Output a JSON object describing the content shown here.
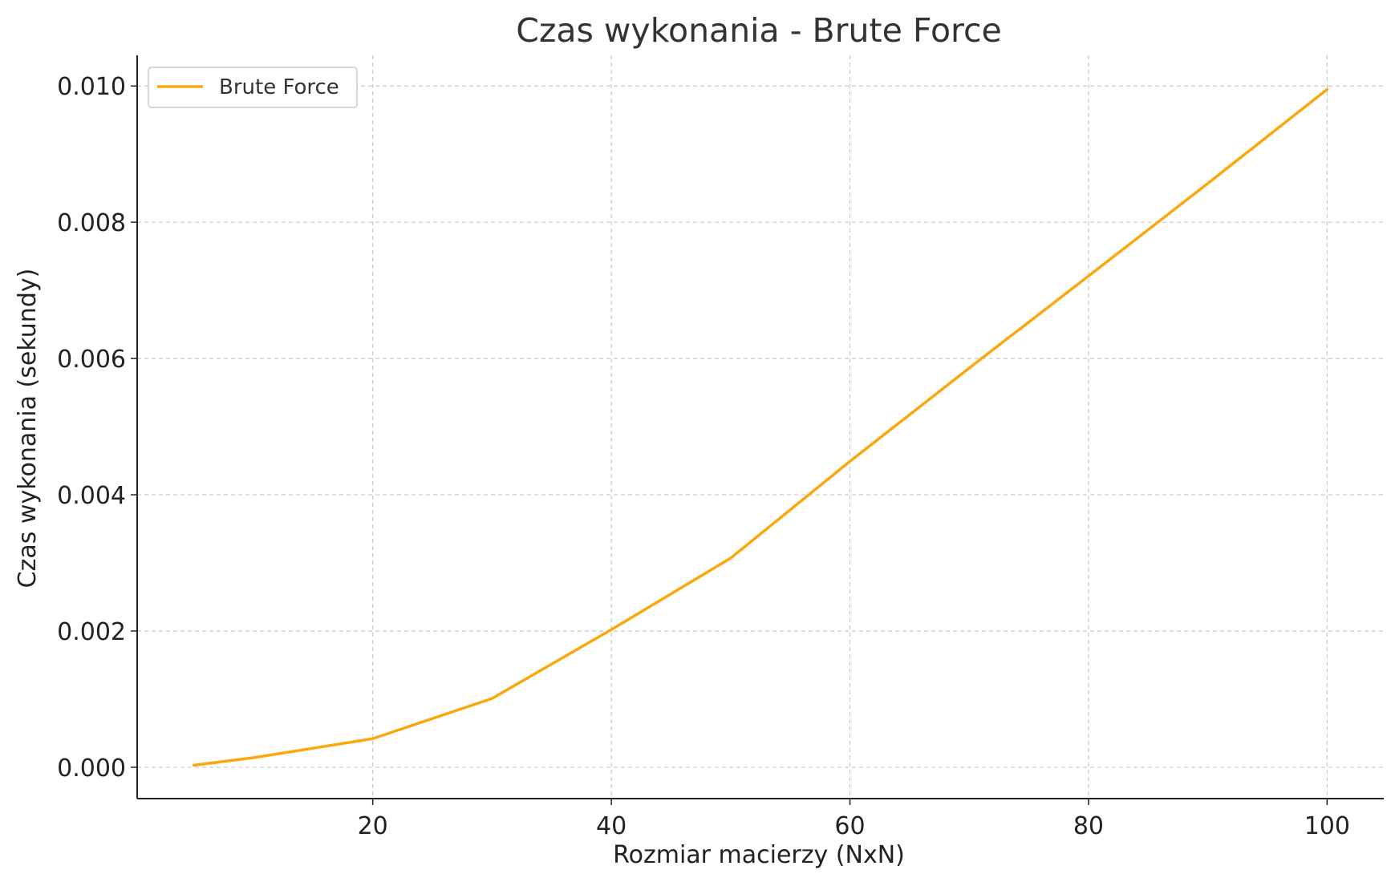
{
  "chart_data": {
    "type": "line",
    "title": "Czas wykonania - Brute Force",
    "xlabel": "Rozmiar macierzy (NxN)",
    "ylabel": "Czas wykonania (sekundy)",
    "xlim": [
      0.25,
      104.75
    ],
    "ylim": [
      -0.00046,
      0.01045
    ],
    "xticks": [
      20,
      40,
      60,
      80,
      100
    ],
    "xtick_labels": [
      "20",
      "40",
      "60",
      "80",
      "100"
    ],
    "yticks": [
      0,
      0.002,
      0.004,
      0.006,
      0.008,
      0.01
    ],
    "ytick_labels": [
      "0.000",
      "0.002",
      "0.004",
      "0.006",
      "0.008",
      "0.010"
    ],
    "grid": true,
    "legend_position": "top-left",
    "series": [
      {
        "name": "Brute Force",
        "color": "#F9A80E",
        "x": [
          5,
          10,
          20,
          30,
          40,
          50,
          60,
          70,
          80,
          90,
          100
        ],
        "y": [
          3e-05,
          0.00014,
          0.00042,
          0.00101,
          0.00202,
          0.00307,
          0.00449,
          0.00586,
          0.00721,
          0.00857,
          0.00995
        ]
      }
    ]
  }
}
